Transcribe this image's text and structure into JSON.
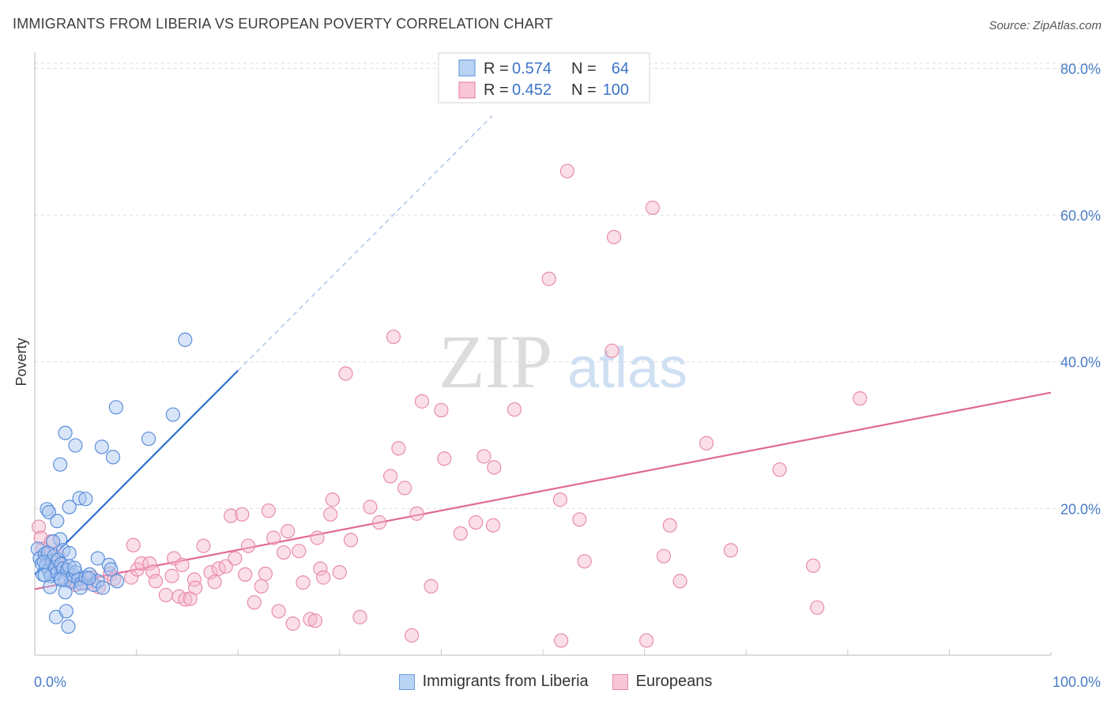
{
  "title": "IMMIGRANTS FROM LIBERIA VS EUROPEAN POVERTY CORRELATION CHART",
  "source": "Source: ZipAtlas.com",
  "watermark": {
    "zip": "ZIP",
    "atlas": "atlas"
  },
  "colors": {
    "blue": "#4a86e8",
    "blue_fill": "#a9c6f0",
    "blue_line": "#2f6fd0",
    "pink": "#e8709a",
    "pink_fill": "#f5b8cd",
    "pink_line": "#e06a94",
    "label_blue": "#4a7cc7"
  },
  "legend": {
    "rows": [
      {
        "r_label": "R =",
        "r_value": "0.574",
        "n_label": "N =",
        "n_value": "64"
      },
      {
        "r_label": "R =",
        "r_value": "0.452",
        "n_label": "N =",
        "n_value": "100"
      }
    ]
  },
  "bottom_legend": [
    "Immigrants from Liberia",
    "Europeans"
  ],
  "chart_data": {
    "type": "scatter",
    "xlabel": "",
    "ylabel": "Poverty",
    "xlim": [
      0,
      100
    ],
    "ylim": [
      0,
      80
    ],
    "x_tick_labels": [
      "0.0%",
      "100.0%"
    ],
    "y_ticks": [
      20,
      40,
      60,
      80
    ],
    "y_tick_labels": [
      "20.0%",
      "40.0%",
      "60.0%",
      "80.0%"
    ],
    "grid": true,
    "series": [
      {
        "name": "Immigrants from Liberia",
        "r": 0.574,
        "n": 64,
        "trend": {
          "x": [
            0,
            20
          ],
          "y": [
            11.0,
            38.8
          ],
          "extend_to": [
            45,
            73.5
          ]
        },
        "points": [
          [
            0.3,
            14.5
          ],
          [
            0.5,
            13.2
          ],
          [
            0.7,
            12.5
          ],
          [
            0.8,
            11.0
          ],
          [
            1.0,
            13.8
          ],
          [
            1.1,
            12.2
          ],
          [
            1.3,
            14.0
          ],
          [
            1.4,
            11.5
          ],
          [
            1.6,
            10.8
          ],
          [
            1.7,
            12.8
          ],
          [
            1.9,
            13.5
          ],
          [
            2.0,
            12.0
          ],
          [
            2.2,
            11.2
          ],
          [
            2.3,
            13.0
          ],
          [
            2.5,
            10.5
          ],
          [
            2.6,
            12.4
          ],
          [
            2.8,
            11.8
          ],
          [
            3.0,
            10.2
          ],
          [
            3.2,
            11.6
          ],
          [
            3.4,
            12.1
          ],
          [
            3.6,
            10.0
          ],
          [
            3.8,
            10.9
          ],
          [
            4.0,
            11.3
          ],
          [
            4.3,
            10.4
          ],
          [
            4.6,
            9.8
          ],
          [
            5.0,
            10.6
          ],
          [
            5.4,
            11.0
          ],
          [
            5.8,
            9.6
          ],
          [
            6.2,
            10.1
          ],
          [
            6.7,
            9.2
          ],
          [
            1.2,
            19.9
          ],
          [
            1.4,
            19.5
          ],
          [
            2.2,
            18.3
          ],
          [
            2.5,
            15.8
          ],
          [
            3.4,
            20.2
          ],
          [
            4.4,
            21.4
          ],
          [
            5.0,
            21.3
          ],
          [
            2.8,
            14.3
          ],
          [
            1.8,
            15.5
          ],
          [
            1.0,
            10.9
          ],
          [
            2.5,
            26.0
          ],
          [
            3.0,
            30.3
          ],
          [
            4.0,
            28.6
          ],
          [
            6.6,
            28.4
          ],
          [
            7.7,
            27.0
          ],
          [
            8.0,
            33.8
          ],
          [
            11.2,
            29.5
          ],
          [
            14.8,
            43.0
          ],
          [
            13.6,
            32.8
          ],
          [
            3.4,
            13.9
          ],
          [
            6.2,
            13.2
          ],
          [
            7.3,
            12.3
          ],
          [
            7.5,
            11.7
          ],
          [
            8.1,
            10.1
          ],
          [
            1.5,
            9.3
          ],
          [
            3.0,
            8.6
          ],
          [
            2.1,
            5.2
          ],
          [
            3.1,
            6.0
          ],
          [
            3.3,
            3.9
          ],
          [
            5.3,
            10.5
          ],
          [
            4.5,
            9.2
          ],
          [
            2.6,
            10.3
          ],
          [
            3.9,
            11.9
          ],
          [
            0.9,
            12.7
          ]
        ]
      },
      {
        "name": "Europeans",
        "r": 0.452,
        "n": 100,
        "trend": {
          "x": [
            0,
            100
          ],
          "y": [
            9.0,
            35.8
          ]
        },
        "points": [
          [
            0.4,
            17.5
          ],
          [
            0.6,
            16.0
          ],
          [
            0.8,
            14.5
          ],
          [
            1.1,
            13.3
          ],
          [
            1.6,
            15.5
          ],
          [
            2.0,
            12.6
          ],
          [
            2.3,
            13.5
          ],
          [
            2.8,
            11.8
          ],
          [
            3.5,
            10.2
          ],
          [
            4.0,
            9.6
          ],
          [
            5.0,
            9.8
          ],
          [
            5.6,
            10.6
          ],
          [
            6.3,
            9.3
          ],
          [
            7.4,
            11.1
          ],
          [
            7.8,
            10.4
          ],
          [
            9.5,
            10.6
          ],
          [
            9.7,
            15.0
          ],
          [
            10.1,
            11.7
          ],
          [
            10.5,
            12.5
          ],
          [
            11.3,
            12.5
          ],
          [
            11.6,
            11.4
          ],
          [
            11.9,
            10.1
          ],
          [
            12.9,
            8.2
          ],
          [
            13.5,
            10.8
          ],
          [
            13.7,
            13.2
          ],
          [
            14.2,
            8.0
          ],
          [
            14.5,
            12.3
          ],
          [
            14.8,
            7.6
          ],
          [
            15.3,
            7.7
          ],
          [
            15.7,
            10.3
          ],
          [
            15.8,
            9.2
          ],
          [
            16.6,
            14.9
          ],
          [
            17.3,
            11.3
          ],
          [
            17.7,
            10.0
          ],
          [
            18.1,
            11.8
          ],
          [
            18.8,
            12.1
          ],
          [
            19.3,
            19.0
          ],
          [
            19.7,
            13.2
          ],
          [
            20.4,
            19.2
          ],
          [
            20.7,
            11.0
          ],
          [
            21.0,
            14.9
          ],
          [
            21.6,
            7.2
          ],
          [
            22.3,
            9.4
          ],
          [
            22.7,
            11.1
          ],
          [
            23.0,
            19.7
          ],
          [
            23.5,
            16.0
          ],
          [
            24.0,
            6.0
          ],
          [
            24.5,
            14.0
          ],
          [
            24.9,
            16.9
          ],
          [
            25.4,
            4.3
          ],
          [
            26.0,
            14.2
          ],
          [
            26.4,
            9.9
          ],
          [
            27.1,
            4.9
          ],
          [
            27.6,
            4.7
          ],
          [
            27.8,
            16.0
          ],
          [
            28.1,
            11.8
          ],
          [
            28.4,
            10.6
          ],
          [
            29.1,
            19.2
          ],
          [
            29.3,
            21.2
          ],
          [
            30.0,
            11.3
          ],
          [
            30.6,
            38.4
          ],
          [
            31.1,
            15.7
          ],
          [
            32.0,
            5.2
          ],
          [
            33.0,
            20.2
          ],
          [
            33.9,
            18.1
          ],
          [
            35.0,
            24.4
          ],
          [
            35.3,
            43.4
          ],
          [
            35.8,
            28.2
          ],
          [
            36.4,
            22.8
          ],
          [
            37.1,
            2.7
          ],
          [
            37.6,
            19.3
          ],
          [
            38.1,
            34.6
          ],
          [
            39.0,
            9.4
          ],
          [
            40.0,
            33.4
          ],
          [
            40.3,
            26.8
          ],
          [
            41.9,
            16.6
          ],
          [
            43.4,
            18.1
          ],
          [
            44.2,
            27.1
          ],
          [
            45.1,
            17.7
          ],
          [
            45.2,
            25.6
          ],
          [
            47.2,
            33.5
          ],
          [
            50.6,
            51.3
          ],
          [
            51.7,
            21.2
          ],
          [
            51.8,
            2.0
          ],
          [
            52.4,
            66.0
          ],
          [
            53.6,
            18.5
          ],
          [
            54.1,
            12.8
          ],
          [
            56.8,
            41.5
          ],
          [
            57.0,
            57.0
          ],
          [
            60.2,
            2.0
          ],
          [
            60.8,
            61.0
          ],
          [
            61.9,
            13.5
          ],
          [
            62.5,
            17.7
          ],
          [
            63.5,
            10.1
          ],
          [
            66.1,
            28.9
          ],
          [
            68.5,
            14.3
          ],
          [
            73.3,
            25.3
          ],
          [
            76.6,
            12.2
          ],
          [
            77.0,
            6.5
          ],
          [
            81.2,
            35.0
          ]
        ]
      }
    ]
  }
}
